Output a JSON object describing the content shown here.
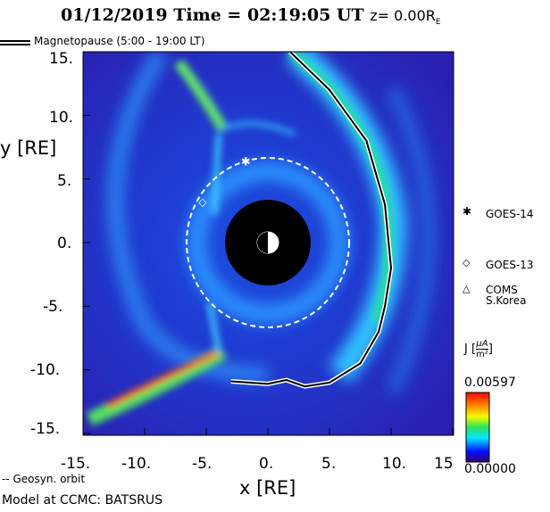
{
  "header": {
    "date": "01/12/2019",
    "time_label": "Time = 02:19:05 UT",
    "z_label": "z= 0.00R",
    "z_sub": "E"
  },
  "legend": {
    "magnetopause": "Magnetopause (5:00 - 19:00 LT)",
    "geosync": "-- Geosyn. orbit"
  },
  "footer": "Model at CCMC: BATSRUS",
  "satellites": [
    {
      "symbol": "✱",
      "name": "GOES-14",
      "x": -1.8,
      "y": 6.3
    },
    {
      "symbol": "◇",
      "name": "GOES-13",
      "x": -5.3,
      "y": 3.2
    },
    {
      "symbol": "△",
      "name": "COMS",
      "name2": "S.Korea"
    }
  ],
  "colorbar": {
    "label": "J",
    "unit_num": "μA",
    "unit_den": "m²",
    "max": "0.00597",
    "min": "0.00000"
  },
  "chart_data": {
    "type": "heatmap",
    "title": "01/12/2019 Time = 02:19:05 UT z= 0.00RE",
    "xlabel": "x [RE]",
    "ylabel": "y [RE]",
    "xlim": [
      -15,
      15
    ],
    "ylim": [
      -15,
      15
    ],
    "xticks": [
      "-15.",
      "-10.",
      "-5.",
      "0.",
      "5.",
      "10.",
      "15"
    ],
    "yticks": [
      "15.",
      "10.",
      "5.",
      "0.",
      "-5.",
      "-10.",
      "-15."
    ],
    "colorscale": "rainbow",
    "crange": [
      0,
      0.00597
    ],
    "geosync_radius": 6.6,
    "magnetopause": [
      [
        1.8,
        15
      ],
      [
        5,
        12
      ],
      [
        8,
        8
      ],
      [
        9.5,
        3
      ],
      [
        10,
        -2
      ],
      [
        9.5,
        -5
      ],
      [
        9,
        -7
      ],
      [
        7.5,
        -9.5
      ],
      [
        5,
        -11
      ],
      [
        3,
        -11.3
      ],
      [
        1.5,
        -10.8
      ],
      [
        0,
        -11.1
      ],
      [
        -3,
        -10.9
      ]
    ]
  }
}
